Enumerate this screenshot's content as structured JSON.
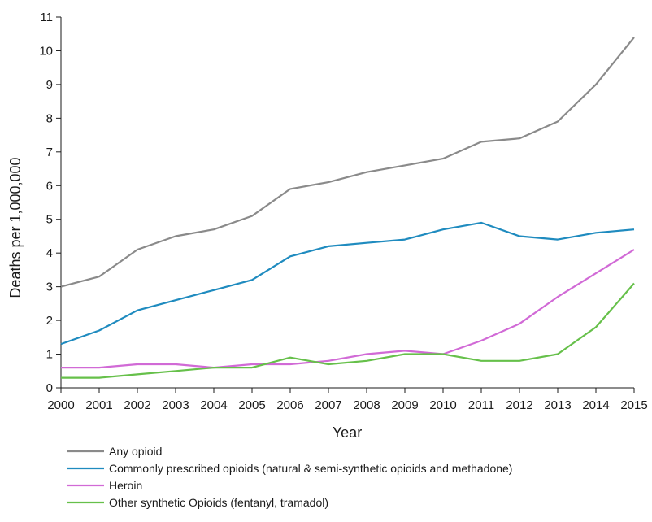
{
  "chart_data": {
    "type": "line",
    "title": "",
    "xlabel": "Year",
    "ylabel": "Deaths per 1,000,000",
    "x": [
      2000,
      2001,
      2002,
      2003,
      2004,
      2005,
      2006,
      2007,
      2008,
      2009,
      2010,
      2011,
      2012,
      2013,
      2014,
      2015
    ],
    "x_tick_labels": [
      "2000",
      "2001",
      "2002",
      "2003",
      "2004",
      "2005",
      "2006",
      "2007",
      "2008",
      "2009",
      "2010",
      "2011",
      "2012",
      "2013",
      "2014",
      "2015"
    ],
    "ylim": [
      0,
      11
    ],
    "y_ticks": [
      0,
      1,
      2,
      3,
      4,
      5,
      6,
      7,
      8,
      9,
      10,
      11
    ],
    "y_tick_labels": [
      "0",
      "1",
      "2",
      "3",
      "4",
      "5",
      "6",
      "7",
      "8",
      "9",
      "10",
      "11"
    ],
    "grid": false,
    "legend_position": "bottom",
    "series": [
      {
        "name": "Any opioid",
        "color": "#8a8a8a",
        "values": [
          3.0,
          3.3,
          4.1,
          4.5,
          4.7,
          5.1,
          5.9,
          6.1,
          6.4,
          6.6,
          6.8,
          7.3,
          7.4,
          7.9,
          9.0,
          10.4
        ]
      },
      {
        "name": "Commonly prescribed opioids (natural & semi-synthetic opioids and methadone)",
        "color": "#1f8bbf",
        "values": [
          1.3,
          1.7,
          2.3,
          2.6,
          2.9,
          3.2,
          3.9,
          4.2,
          4.3,
          4.4,
          4.7,
          4.9,
          4.5,
          4.4,
          4.6,
          4.7
        ]
      },
      {
        "name": "Heroin",
        "color": "#d16ad6",
        "values": [
          0.6,
          0.6,
          0.7,
          0.7,
          0.6,
          0.7,
          0.7,
          0.8,
          1.0,
          1.1,
          1.0,
          1.4,
          1.9,
          2.7,
          3.4,
          4.1
        ]
      },
      {
        "name": "Other synthetic Opioids (fentanyl, tramadol)",
        "color": "#66c04a",
        "values": [
          0.3,
          0.3,
          0.4,
          0.5,
          0.6,
          0.6,
          0.9,
          0.7,
          0.8,
          1.0,
          1.0,
          0.8,
          0.8,
          1.0,
          1.8,
          3.1
        ]
      }
    ]
  }
}
